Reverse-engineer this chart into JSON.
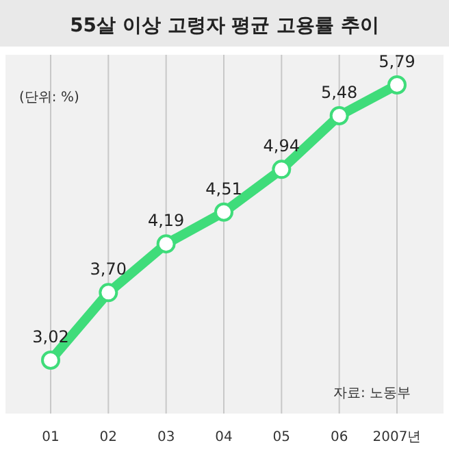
{
  "chart_data": {
    "type": "line",
    "title": "55살 이상 고령자 평균 고용률 추이",
    "annotations": [
      "(단위: %)",
      "자료: 노동부"
    ],
    "categories": [
      "01",
      "02",
      "03",
      "04",
      "05",
      "06",
      "2007년"
    ],
    "series": [
      {
        "color": "#3fdc7a",
        "values": [
          3.02,
          3.7,
          4.19,
          4.51,
          4.94,
          5.48,
          5.79
        ],
        "value_labels": [
          "3,02",
          "3,70",
          "4,19",
          "4,51",
          "4,94",
          "5,48",
          "5,79"
        ]
      }
    ],
    "marker": "circle",
    "grid": "x"
  }
}
